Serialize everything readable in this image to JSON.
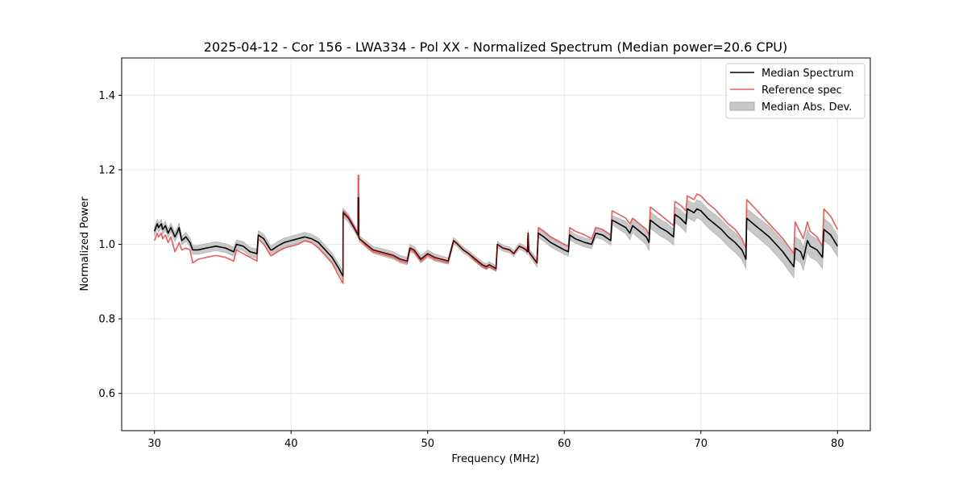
{
  "chart_data": {
    "type": "line",
    "title": "2025-04-12 - Cor 156 - LWA334 - Pol XX - Normalized Spectrum (Median power=20.6 CPU)",
    "xlabel": "Frequency (MHz)",
    "ylabel": "Normalized Power",
    "xlim": [
      27.6,
      82.4
    ],
    "ylim": [
      0.5,
      1.5
    ],
    "xticks": [
      30,
      40,
      50,
      60,
      70,
      80
    ],
    "yticks": [
      0.6,
      0.8,
      1.0,
      1.2,
      1.4
    ],
    "xtick_labels": [
      "30",
      "40",
      "50",
      "60",
      "70",
      "80"
    ],
    "ytick_labels": [
      "0.6",
      "0.8",
      "1.0",
      "1.2",
      "1.4"
    ],
    "grid": true,
    "legend_position": "top-right",
    "colors": {
      "median": "#000000",
      "reference": "#f05a5a",
      "mad_fill": "#c8c8c8",
      "mad_edge": "#a8a8a8",
      "overlap": "#8b0000"
    },
    "series": [
      {
        "name": "Median Spectrum",
        "style": "line",
        "x": [
          30.0,
          30.2,
          30.3,
          30.5,
          30.6,
          30.8,
          31.0,
          31.2,
          31.5,
          31.7,
          31.8,
          32.0,
          32.3,
          32.6,
          32.8,
          33.2,
          33.8,
          34.5,
          35.2,
          35.8,
          36.0,
          36.5,
          37.0,
          37.5,
          37.6,
          38.0,
          38.5,
          38.6,
          39.0,
          39.5,
          40.0,
          40.5,
          41.0,
          41.5,
          42.0,
          42.5,
          43.0,
          43.5,
          43.8,
          43.81,
          44.2,
          44.6,
          44.9,
          44.91,
          44.95,
          44.96,
          45.0,
          45.5,
          46.0,
          46.5,
          47.0,
          47.5,
          48.0,
          48.5,
          48.7,
          49.0,
          49.5,
          50.0,
          50.5,
          51.0,
          51.5,
          51.9,
          52.2,
          52.6,
          53.0,
          53.5,
          54.0,
          54.3,
          54.5,
          55.0,
          55.1,
          55.5,
          56.0,
          56.3,
          56.7,
          57.0,
          57.2,
          57.3,
          57.35,
          57.4,
          58.0,
          58.1,
          58.5,
          59.0,
          59.5,
          60.0,
          60.3,
          60.4,
          60.8,
          61.5,
          62.0,
          62.3,
          62.8,
          63.4,
          63.5,
          64.0,
          64.5,
          64.8,
          65.0,
          65.5,
          66.0,
          66.2,
          66.3,
          67.0,
          67.5,
          68.0,
          68.1,
          68.5,
          68.9,
          69.0,
          69.5,
          69.7,
          70.0,
          70.5,
          71.0,
          71.5,
          72.0,
          72.5,
          73.0,
          73.3,
          73.35,
          74.0,
          74.5,
          75.0,
          75.5,
          76.0,
          76.5,
          76.8,
          76.9,
          77.3,
          77.5,
          77.8,
          78.0,
          78.5,
          78.9,
          79.0,
          79.5,
          80.0
        ],
        "y": [
          1.035,
          1.055,
          1.045,
          1.055,
          1.04,
          1.05,
          1.03,
          1.045,
          1.02,
          1.035,
          1.045,
          1.01,
          1.02,
          1.005,
          0.985,
          0.985,
          0.99,
          0.995,
          0.99,
          0.98,
          1.0,
          0.995,
          0.98,
          0.975,
          1.025,
          1.015,
          0.985,
          0.985,
          0.995,
          1.005,
          1.01,
          1.015,
          1.02,
          1.015,
          1.005,
          0.985,
          0.965,
          0.935,
          0.915,
          1.085,
          1.07,
          1.045,
          1.025,
          1.125,
          1.125,
          1.02,
          1.015,
          1.0,
          0.985,
          0.98,
          0.975,
          0.97,
          0.96,
          0.955,
          0.99,
          0.985,
          0.96,
          0.975,
          0.965,
          0.96,
          0.955,
          1.01,
          1.0,
          0.985,
          0.975,
          0.96,
          0.945,
          0.94,
          0.945,
          0.935,
          1.0,
          0.99,
          0.985,
          0.975,
          0.995,
          0.99,
          0.985,
          0.98,
          1.03,
          0.98,
          0.95,
          1.03,
          1.02,
          1.005,
          0.995,
          0.985,
          0.98,
          1.025,
          1.015,
          1.005,
          1.0,
          1.03,
          1.025,
          1.01,
          1.065,
          1.055,
          1.045,
          1.03,
          1.05,
          1.035,
          1.02,
          1.005,
          1.065,
          1.045,
          1.035,
          1.02,
          1.08,
          1.07,
          1.055,
          1.095,
          1.085,
          1.095,
          1.09,
          1.07,
          1.055,
          1.04,
          1.02,
          1.005,
          0.985,
          0.96,
          1.07,
          1.05,
          1.035,
          1.02,
          1.0,
          0.98,
          0.955,
          0.94,
          0.99,
          0.98,
          0.96,
          1.01,
          0.995,
          0.985,
          0.965,
          1.04,
          1.025,
          0.995
        ]
      },
      {
        "name": "Reference spec",
        "style": "line",
        "x": [
          30.0,
          30.2,
          30.3,
          30.5,
          30.6,
          30.8,
          31.0,
          31.2,
          31.5,
          31.7,
          31.8,
          32.0,
          32.3,
          32.6,
          32.8,
          33.2,
          33.8,
          34.5,
          35.2,
          35.8,
          36.0,
          36.5,
          37.0,
          37.5,
          37.6,
          38.0,
          38.5,
          38.6,
          39.0,
          39.5,
          40.0,
          40.5,
          41.0,
          41.5,
          42.0,
          42.5,
          43.0,
          43.5,
          43.8,
          43.81,
          44.2,
          44.6,
          44.9,
          44.91,
          44.95,
          44.96,
          45.0,
          45.5,
          46.0,
          46.5,
          47.0,
          47.5,
          48.0,
          48.5,
          48.7,
          49.0,
          49.5,
          50.0,
          50.5,
          51.0,
          51.5,
          51.9,
          52.2,
          52.6,
          53.0,
          53.5,
          54.0,
          54.3,
          54.5,
          55.0,
          55.1,
          55.5,
          56.0,
          56.3,
          56.7,
          57.0,
          57.2,
          57.3,
          57.35,
          57.4,
          58.0,
          58.1,
          58.5,
          59.0,
          59.5,
          60.0,
          60.3,
          60.4,
          60.8,
          61.5,
          62.0,
          62.3,
          62.8,
          63.4,
          63.5,
          64.0,
          64.5,
          64.8,
          65.0,
          65.5,
          66.0,
          66.2,
          66.3,
          67.0,
          67.5,
          68.0,
          68.1,
          68.5,
          68.9,
          69.0,
          69.5,
          69.7,
          70.0,
          70.5,
          71.0,
          71.5,
          72.0,
          72.5,
          73.0,
          73.3,
          73.35,
          74.0,
          74.5,
          75.0,
          75.5,
          76.0,
          76.5,
          76.8,
          76.9,
          77.3,
          77.5,
          77.8,
          78.0,
          78.5,
          78.9,
          79.0,
          79.5,
          80.0
        ],
        "y": [
          1.01,
          1.03,
          1.02,
          1.03,
          1.015,
          1.025,
          1.005,
          1.02,
          0.98,
          0.995,
          1.005,
          0.985,
          0.99,
          0.985,
          0.95,
          0.96,
          0.965,
          0.97,
          0.965,
          0.955,
          0.985,
          0.975,
          0.965,
          0.955,
          1.015,
          1.0,
          0.97,
          0.97,
          0.98,
          0.99,
          0.995,
          1.0,
          1.01,
          1.005,
          0.99,
          0.97,
          0.95,
          0.915,
          0.895,
          1.09,
          1.075,
          1.05,
          1.025,
          1.185,
          1.185,
          1.02,
          1.015,
          0.995,
          0.98,
          0.975,
          0.97,
          0.965,
          0.955,
          0.95,
          0.985,
          0.98,
          0.955,
          0.97,
          0.96,
          0.955,
          0.95,
          1.01,
          1.0,
          0.985,
          0.975,
          0.955,
          0.94,
          0.935,
          0.94,
          0.93,
          1.0,
          0.99,
          0.985,
          0.975,
          0.995,
          0.99,
          0.985,
          0.98,
          1.03,
          0.98,
          0.95,
          1.045,
          1.035,
          1.02,
          1.01,
          1.0,
          0.995,
          1.045,
          1.035,
          1.025,
          1.015,
          1.045,
          1.04,
          1.025,
          1.09,
          1.08,
          1.07,
          1.055,
          1.07,
          1.055,
          1.04,
          1.025,
          1.1,
          1.08,
          1.065,
          1.05,
          1.115,
          1.105,
          1.09,
          1.13,
          1.12,
          1.135,
          1.13,
          1.11,
          1.095,
          1.075,
          1.055,
          1.04,
          1.015,
          0.99,
          1.12,
          1.095,
          1.075,
          1.055,
          1.035,
          1.015,
          0.99,
          0.975,
          1.06,
          1.03,
          1.015,
          1.06,
          1.035,
          1.02,
          0.995,
          1.095,
          1.075,
          1.04
        ]
      },
      {
        "name": "Median Abs. Dev.",
        "style": "band",
        "x": [
          30.0,
          32.0,
          35.0,
          38.0,
          40.0,
          42.0,
          43.8,
          44.9,
          47.0,
          50.0,
          52.0,
          54.5,
          55.1,
          57.3,
          58.1,
          60.4,
          63.4,
          64.8,
          66.3,
          68.1,
          69.7,
          71.5,
          73.3,
          75.0,
          76.9,
          78.0,
          79.0,
          80.0
        ],
        "band_halfwidth": [
          0.012,
          0.012,
          0.012,
          0.012,
          0.012,
          0.012,
          0.012,
          0.008,
          0.01,
          0.01,
          0.008,
          0.008,
          0.008,
          0.008,
          0.012,
          0.012,
          0.012,
          0.018,
          0.022,
          0.022,
          0.024,
          0.026,
          0.026,
          0.028,
          0.03,
          0.03,
          0.03,
          0.028
        ]
      }
    ]
  }
}
